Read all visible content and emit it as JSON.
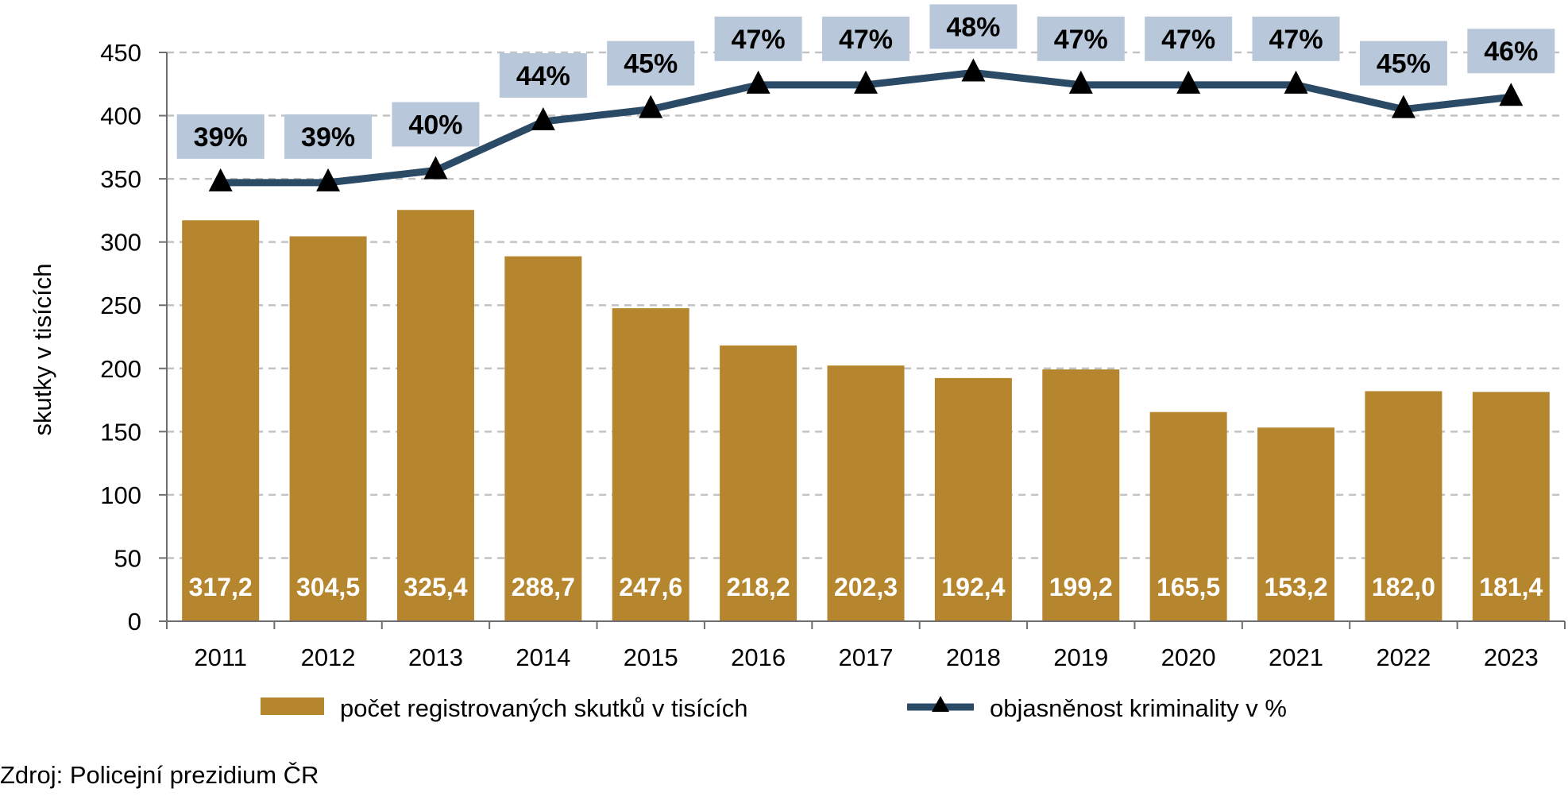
{
  "chart_data": {
    "type": "bar",
    "categories": [
      "2011",
      "2012",
      "2013",
      "2014",
      "2015",
      "2016",
      "2017",
      "2018",
      "2019",
      "2020",
      "2021",
      "2022",
      "2023"
    ],
    "series": [
      {
        "name": "počet registrovaných skutků v tisících",
        "type": "bar",
        "color": "#b5862e",
        "values": [
          317.2,
          304.5,
          325.4,
          288.7,
          247.6,
          218.2,
          202.3,
          192.4,
          199.2,
          165.5,
          153.2,
          182.0,
          181.4
        ],
        "labels": [
          "317,2",
          "304,5",
          "325,4",
          "288,7",
          "247,6",
          "218,2",
          "202,3",
          "192,4",
          "199,2",
          "165,5",
          "153,2",
          "182,0",
          "181,4"
        ]
      },
      {
        "name": "objasněnost kriminality v %",
        "type": "line",
        "color": "#2b4a66",
        "marker": "triangle",
        "values": [
          39,
          39,
          40,
          44,
          45,
          47,
          47,
          48,
          47,
          47,
          47,
          45,
          46
        ],
        "labels": [
          "39%",
          "39%",
          "40%",
          "44%",
          "45%",
          "47%",
          "47%",
          "48%",
          "47%",
          "47%",
          "47%",
          "45%",
          "46%"
        ]
      }
    ],
    "ylabel": "skutky v tisících",
    "ylim": [
      0,
      450
    ],
    "yticks": [
      "0",
      "50",
      "100",
      "150",
      "200",
      "250",
      "300",
      "350",
      "400",
      "450"
    ],
    "grid": true,
    "legend_position": "bottom",
    "label_box_color": "#b8c7d9"
  },
  "source": "Zdroj: Policejní prezidium ČR"
}
